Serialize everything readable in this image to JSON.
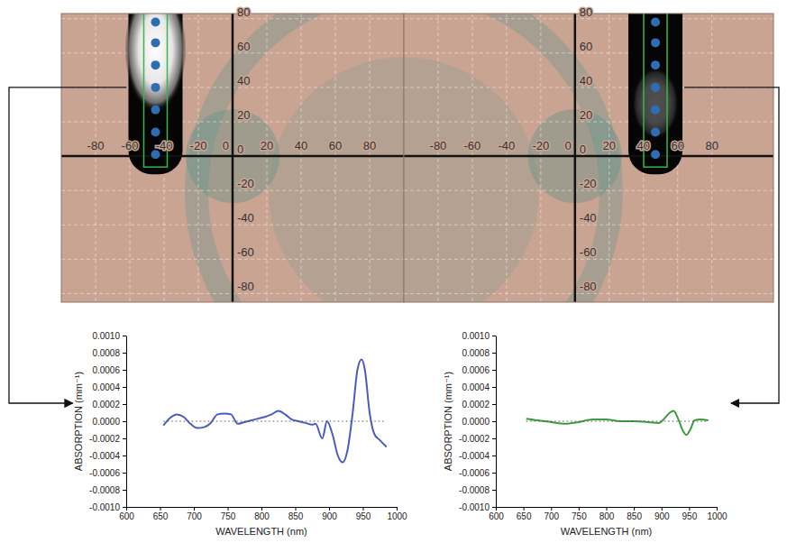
{
  "chart_data": [
    {
      "type": "scatter",
      "x": [
        -45,
        -45,
        -45,
        -45,
        -45,
        -45,
        -45
      ],
      "values": [
        1,
        14,
        27,
        40,
        53,
        66,
        78
      ],
      "color": "#2e6db4",
      "marker": "circle",
      "grid": true,
      "xlim": [
        -100,
        100
      ],
      "ylim": [
        -85,
        83
      ],
      "xticks": [
        -80,
        -60,
        -40,
        -20,
        0,
        20,
        40,
        60,
        80
      ],
      "yticks": [
        -80,
        -60,
        -40,
        -20,
        0,
        20,
        40,
        60,
        80
      ]
    },
    {
      "type": "scatter",
      "x": [
        47,
        47,
        47,
        47,
        47,
        47,
        47
      ],
      "values": [
        1,
        14,
        27,
        40,
        53,
        66,
        78
      ],
      "color": "#2e6db4",
      "marker": "circle",
      "grid": true,
      "xlim": [
        -100,
        116
      ],
      "ylim": [
        -85,
        83
      ],
      "xticks": [
        -80,
        -60,
        -40,
        -20,
        0,
        20,
        40,
        60,
        80
      ],
      "yticks": [
        -80,
        -60,
        -40,
        -20,
        0,
        20,
        40,
        60,
        80
      ]
    },
    {
      "type": "line",
      "xlabel": "WAVELENGTH (nm)",
      "ylabel": "ABSORPTION (mm⁻¹)",
      "x": [
        655,
        665,
        675,
        685,
        695,
        705,
        715,
        725,
        735,
        745,
        755,
        765,
        775,
        785,
        795,
        805,
        815,
        825,
        835,
        845,
        855,
        865,
        875,
        880,
        890,
        897,
        905,
        913,
        920,
        927,
        935,
        942,
        948,
        953,
        960,
        967,
        975,
        985
      ],
      "series": [
        {
          "color": "#4a5dbf",
          "line_style": "solid",
          "values": [
            -5e-05,
            4e-05,
            8e-05,
            5e-05,
            -3e-05,
            -8e-05,
            -7e-05,
            -2e-05,
            8e-05,
            9e-05,
            8e-05,
            -3e-05,
            -1e-05,
            1e-05,
            3e-05,
            5e-05,
            8e-05,
            0.00012,
            8e-05,
            2e-05,
            0.0,
            -2e-05,
            -4e-05,
            -3e-05,
            -0.0002,
            0.0,
            -0.00015,
            -0.0004,
            -0.00048,
            -0.00035,
            0.0001,
            0.0006,
            0.00072,
            0.0006,
            0.0001,
            -0.00015,
            -0.00022,
            -0.0003
          ]
        },
        {
          "color": "#555555",
          "line_style": "dotted",
          "values": [
            0,
            0,
            0,
            0,
            0,
            0,
            0,
            0,
            0,
            0,
            0,
            0,
            0,
            0,
            0,
            0,
            0,
            0,
            0,
            0,
            0,
            0,
            0,
            0,
            0,
            0,
            0,
            0,
            0,
            0,
            0,
            0,
            0,
            0,
            0,
            0,
            0,
            0
          ]
        }
      ],
      "xlim": [
        600,
        1000
      ],
      "ylim": [
        -0.001,
        0.001
      ],
      "xticks": [
        600,
        650,
        700,
        750,
        800,
        850,
        900,
        950,
        1000
      ],
      "yticks": [
        {
          "value": -0.001,
          "label": "-0.0010"
        },
        {
          "value": -0.0008,
          "label": "-0.0008"
        },
        {
          "value": -0.0006,
          "label": "-0.0006"
        },
        {
          "value": -0.0004,
          "label": "-0.0004"
        },
        {
          "value": -0.0002,
          "label": "-0.0002"
        },
        {
          "value": 0,
          "label": "0.0000"
        },
        {
          "value": 0.0002,
          "label": "0.0002"
        },
        {
          "value": 0.0004,
          "label": "0.0004"
        },
        {
          "value": 0.0006,
          "label": "0.0006"
        },
        {
          "value": 0.0008,
          "label": "0.0008"
        },
        {
          "value": 0.001,
          "label": "0.0010"
        }
      ]
    },
    {
      "type": "line",
      "xlabel": "WAVELENGTH (nm)",
      "ylabel": "ABSORPTION (mm⁻¹)",
      "x": [
        655,
        675,
        700,
        725,
        750,
        775,
        800,
        825,
        850,
        875,
        895,
        905,
        915,
        922,
        930,
        938,
        945,
        952,
        960,
        970,
        985
      ],
      "series": [
        {
          "color": "#3a9c3a",
          "line_style": "solid",
          "values": [
            3e-05,
            1e-05,
            -1e-05,
            -3e-05,
            -1e-05,
            2e-05,
            2e-05,
            0.0,
            0.0,
            -1e-05,
            -2e-05,
            3e-05,
            0.0001,
            0.00012,
            3e-05,
            -0.0001,
            -0.00016,
            -0.0001,
            1e-05,
            2e-05,
            1e-05
          ]
        },
        {
          "color": "#555555",
          "line_style": "dotted",
          "values": [
            0,
            0,
            0,
            0,
            0,
            0,
            0,
            0,
            0,
            0,
            0,
            0,
            0,
            0,
            0,
            0,
            0,
            0,
            0,
            0,
            0
          ]
        }
      ],
      "xlim": [
        600,
        1000
      ],
      "ylim": [
        -0.001,
        0.001
      ],
      "xticks": [
        600,
        650,
        700,
        750,
        800,
        850,
        900,
        950,
        1000
      ],
      "yticks": [
        {
          "value": -0.001,
          "label": "-0.0010"
        },
        {
          "value": -0.0008,
          "label": "-0.0008"
        },
        {
          "value": -0.0006,
          "label": "-0.0006"
        },
        {
          "value": -0.0004,
          "label": "-0.0004"
        },
        {
          "value": -0.0002,
          "label": "-0.0002"
        },
        {
          "value": 0,
          "label": "0.0000"
        },
        {
          "value": 0.0002,
          "label": "0.0002"
        },
        {
          "value": 0.0004,
          "label": "0.0004"
        },
        {
          "value": 0.0006,
          "label": "0.0006"
        },
        {
          "value": 0.0008,
          "label": "0.0008"
        },
        {
          "value": 0.001,
          "label": "0.0010"
        }
      ]
    }
  ]
}
